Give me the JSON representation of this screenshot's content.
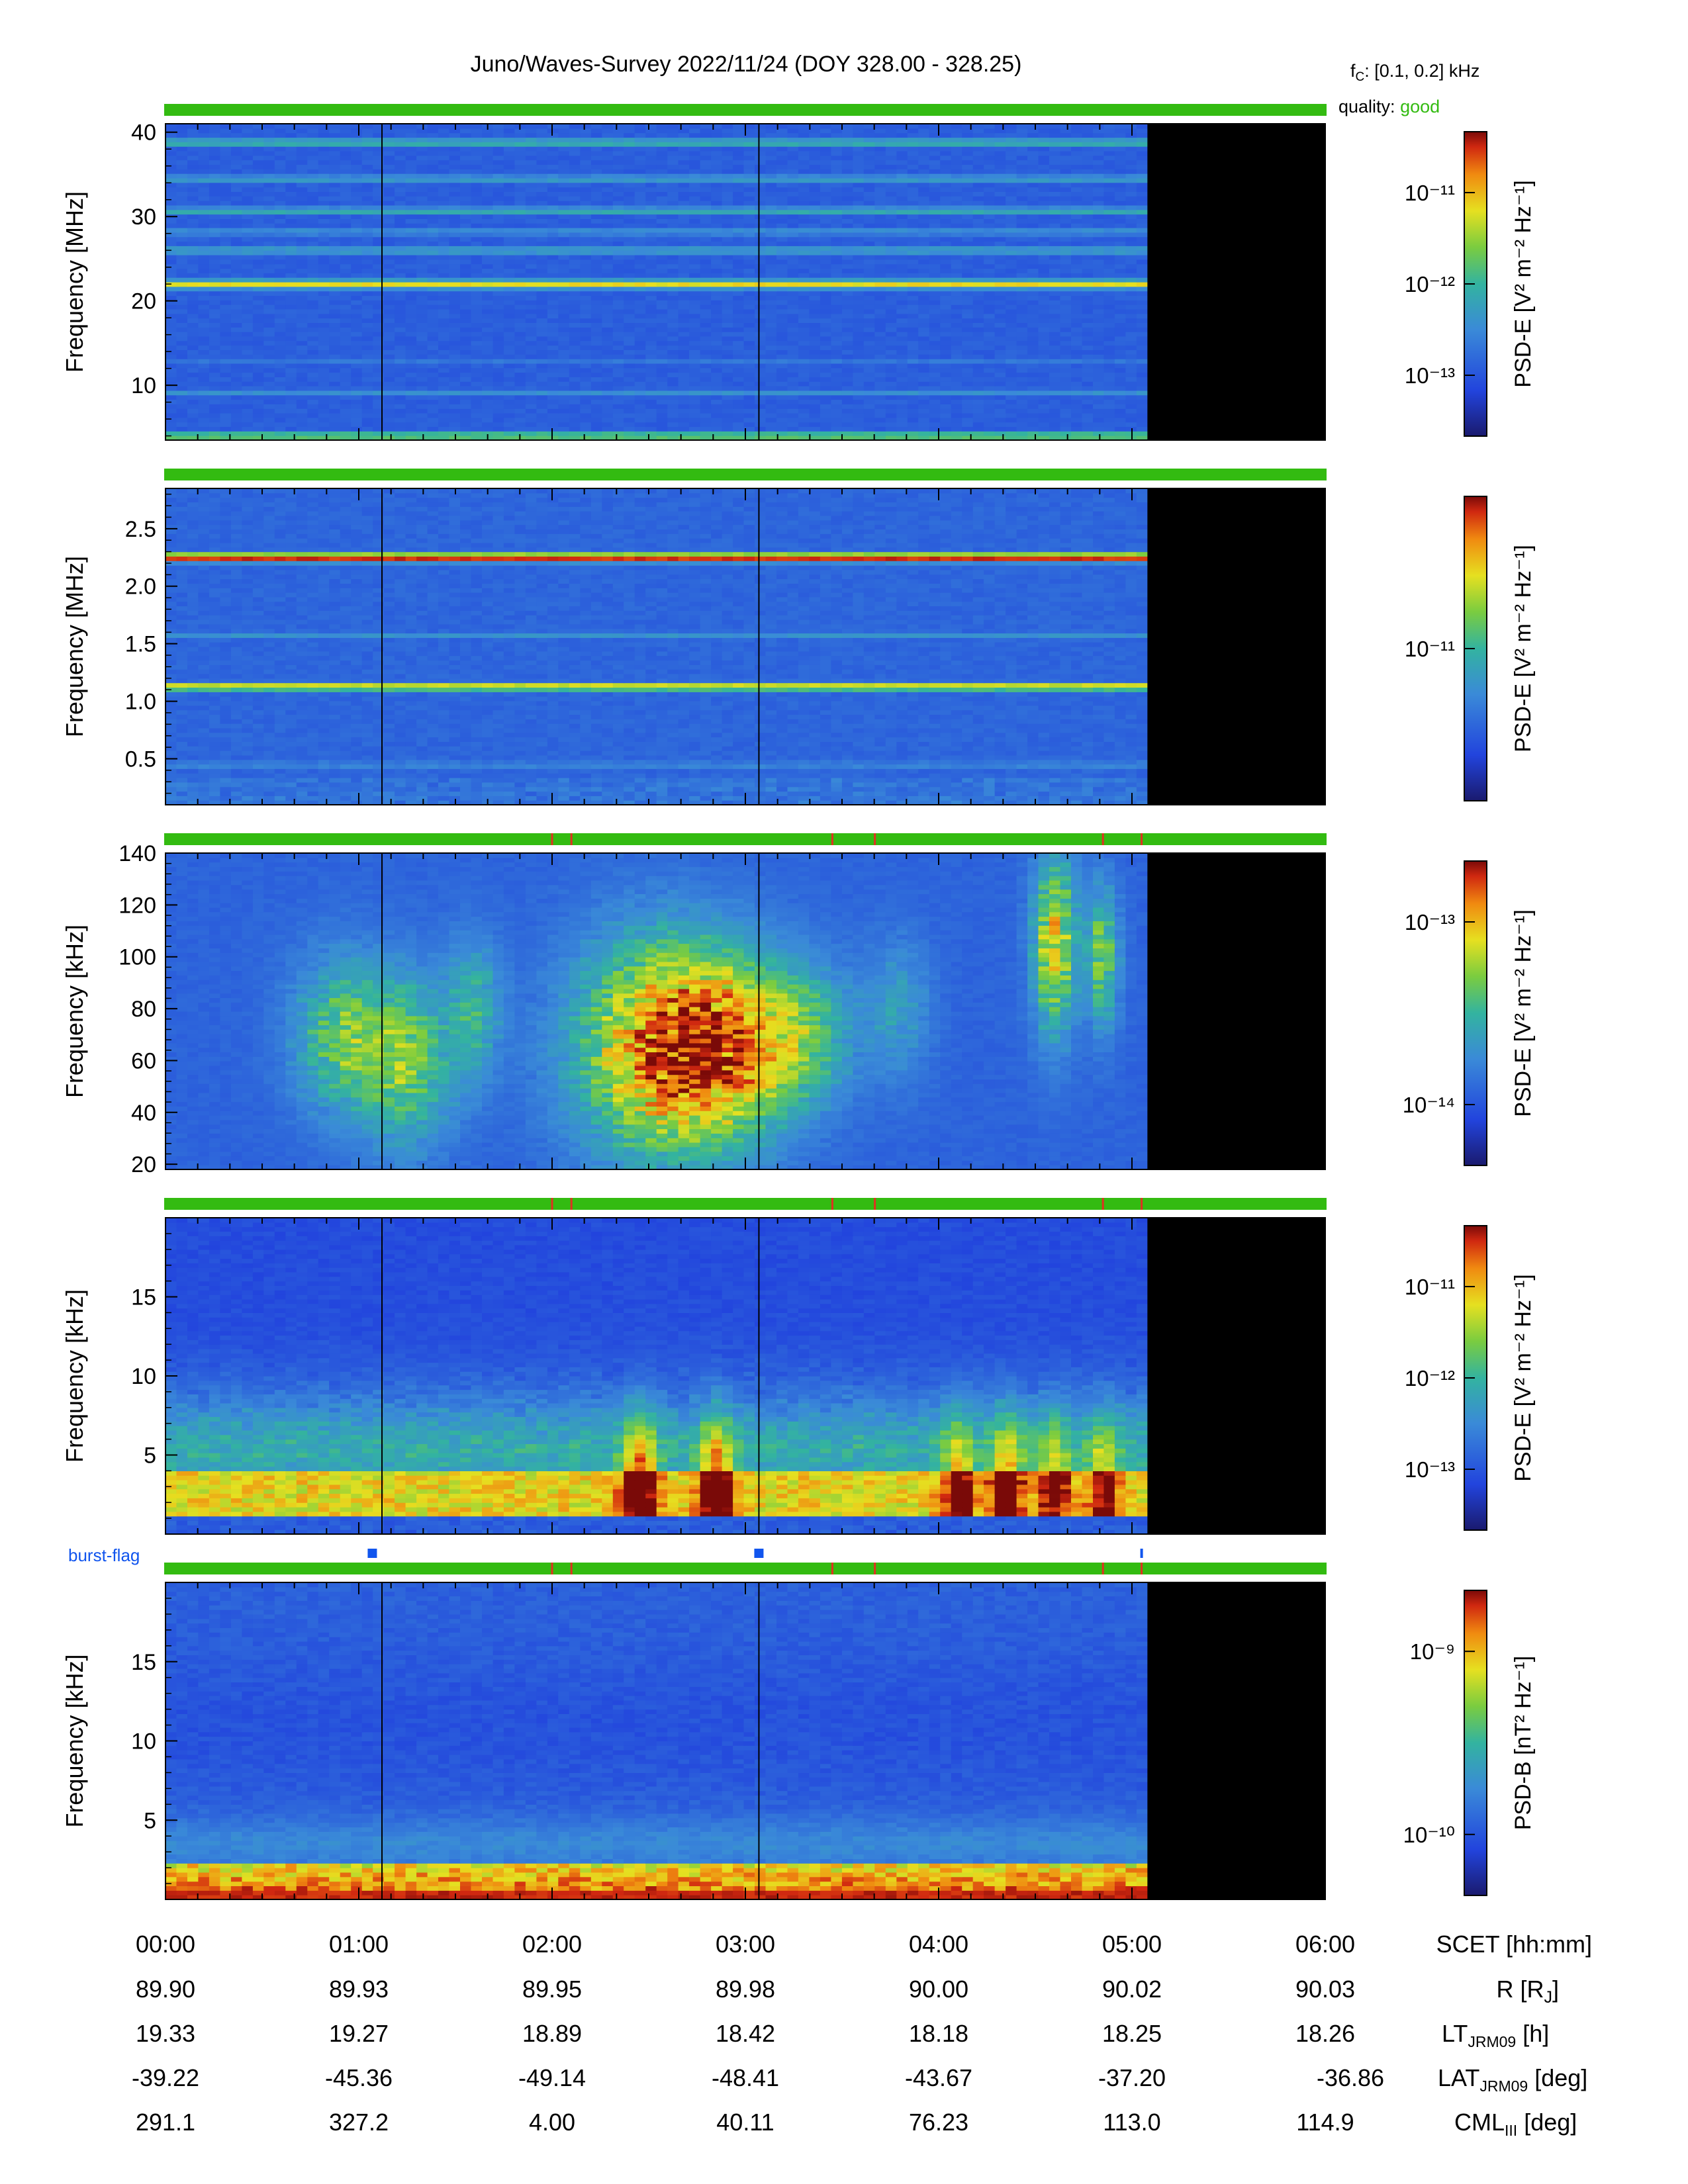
{
  "header": {
    "title": "Juno/Waves-Survey  2022/11/24 (DOY 328.00 - 328.25)",
    "fc_label": "f",
    "fc_sub": "C",
    "fc_value": ": [0.1, 0.2] kHz",
    "quality_label": "quality:",
    "quality_value": "good",
    "quality_color": "#33bb11"
  },
  "burst_flag_label": "burst-flag",
  "colors": {
    "quality_bar": "#33bb11",
    "quality_tick": "#e03020",
    "burst": "#1155ee",
    "no_data": "#000000"
  },
  "chart_data": [
    {
      "type": "heatmap",
      "ylabel": "Frequency [MHz]",
      "yticks": [
        "10",
        "20",
        "30",
        "40"
      ],
      "ylim": [
        3.5,
        41
      ],
      "colorbar": {
        "label": "PSD-E [V² m⁻² Hz⁻¹]",
        "ticks": [
          "10⁻¹¹",
          "10⁻¹²",
          "10⁻¹³"
        ]
      },
      "bands": [
        {
          "y": 4.0,
          "level": 0.6
        },
        {
          "y": 9.2,
          "level": 0.35
        },
        {
          "y": 13.0,
          "level": 0.28
        },
        {
          "y": 22.0,
          "level": 0.72
        },
        {
          "y": 26.0,
          "level": 0.42
        },
        {
          "y": 28.2,
          "level": 0.36
        },
        {
          "y": 30.7,
          "level": 0.45
        },
        {
          "y": 34.5,
          "level": 0.4
        },
        {
          "y": 38.8,
          "level": 0.48
        }
      ],
      "quality_ticks_hours": [],
      "no_data_after_hours": 5.08
    },
    {
      "type": "heatmap",
      "ylabel": "Frequency [MHz]",
      "yticks": [
        "0.5",
        "1.0",
        "1.5",
        "2.0",
        "2.5"
      ],
      "ylim": [
        0.1,
        2.85
      ],
      "colorbar": {
        "label": "PSD-E [V² m⁻² Hz⁻¹]",
        "ticks": [
          "10⁻¹¹"
        ]
      },
      "bands": [
        {
          "y": 2.25,
          "level": 0.95
        },
        {
          "y": 1.13,
          "level": 0.72
        },
        {
          "y": 1.58,
          "level": 0.36
        },
        {
          "y": 0.45,
          "level": 0.34
        }
      ],
      "quality_ticks_hours": [],
      "no_data_after_hours": 5.08
    },
    {
      "type": "heatmap",
      "ylabel": "Frequency [kHz]",
      "yticks": [
        "20",
        "40",
        "60",
        "80",
        "100",
        "120",
        "140"
      ],
      "ylim": [
        18,
        140
      ],
      "colorbar": {
        "label": "PSD-E [V² m⁻² Hz⁻¹]",
        "ticks": [
          "10⁻¹³",
          "10⁻¹⁴"
        ]
      },
      "bands": [],
      "quality_ticks_hours": [
        2.0,
        2.1,
        3.45,
        3.67,
        4.85,
        5.05
      ],
      "no_data_after_hours": 5.08
    },
    {
      "type": "heatmap",
      "ylabel": "Frequency [kHz]",
      "yticks": [
        "5",
        "10",
        "15"
      ],
      "ylim": [
        0,
        20
      ],
      "colorbar": {
        "label": "PSD-E [V² m⁻² Hz⁻¹]",
        "ticks": [
          "10⁻¹¹",
          "10⁻¹²",
          "10⁻¹³"
        ]
      },
      "bands": [],
      "quality_ticks_hours": [
        2.0,
        2.1,
        3.45,
        3.67,
        4.85,
        5.05
      ],
      "no_data_after_hours": 5.08
    },
    {
      "type": "heatmap",
      "ylabel": "Frequency [kHz]",
      "yticks": [
        "5",
        "10",
        "15"
      ],
      "ylim": [
        0,
        20
      ],
      "colorbar": {
        "label": "PSD-B [nT² Hz⁻¹]",
        "ticks": [
          "10⁻⁹",
          "10⁻¹⁰"
        ]
      },
      "bands": [],
      "quality_ticks_hours": [
        2.0,
        2.1,
        3.45,
        3.67,
        4.85,
        5.05
      ],
      "no_data_after_hours": 5.08
    }
  ],
  "burst_flags_hours": [
    1.07,
    3.07,
    5.05
  ],
  "time_axis": {
    "xlim_hours": [
      0,
      6
    ],
    "gap_lines_hours": [
      1.12,
      3.07
    ],
    "rows": [
      {
        "label": "SCET [hh:mm]",
        "values": [
          "00:00",
          "01:00",
          "02:00",
          "03:00",
          "04:00",
          "05:00",
          "06:00"
        ]
      },
      {
        "label": "R [R",
        "label_sub": "J",
        "label_tail": "]",
        "values": [
          "89.90",
          "89.93",
          "89.95",
          "89.98",
          "90.00",
          "90.02",
          "90.03"
        ]
      },
      {
        "label": "LT",
        "label_sub": "JRM09",
        "label_tail": " [h]",
        "values": [
          "19.33",
          "19.27",
          "18.89",
          "18.42",
          "18.18",
          "18.25",
          "18.26"
        ]
      },
      {
        "label": "LAT",
        "label_sub": "JRM09",
        "label_tail": " [deg]",
        "values": [
          "-39.22",
          "-45.36",
          "-49.14",
          "-48.41",
          "-43.67",
          "-37.20",
          "-36.86"
        ]
      },
      {
        "label": "CML",
        "label_sub": "III",
        "label_tail": " [deg]",
        "values": [
          "291.1",
          "327.2",
          "4.00",
          "40.11",
          "76.23",
          "113.0",
          "114.9"
        ]
      }
    ]
  }
}
